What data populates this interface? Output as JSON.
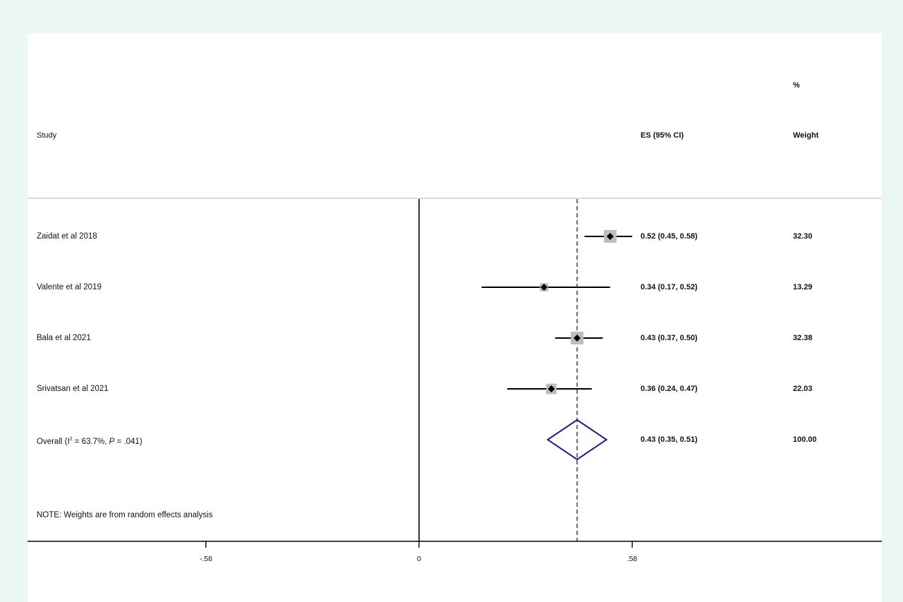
{
  "headers": {
    "study": "Study",
    "es": "ES (95% CI)",
    "weight_top": "%",
    "weight": "Weight"
  },
  "overall": {
    "label_prefix": "Overall  (I",
    "label_sup": "2",
    "label_mid": " = 63.7%, ",
    "label_p": "P",
    "label_end": " = .041)",
    "es_text": "0.43 (0.35, 0.51)",
    "weight_text": "100.00"
  },
  "note": "NOTE: Weights are from random effects analysis",
  "chart_data": {
    "type": "forest",
    "x_axis": {
      "ticks": [
        -0.58,
        0,
        0.58
      ],
      "tick_labels": [
        "-.58",
        "0",
        ".58"
      ],
      "range": [
        -1.064,
        1.256
      ]
    },
    "null_line": 0,
    "pooled_line": 0.43,
    "studies": [
      {
        "name": "Zaidat et al 2018",
        "es": 0.52,
        "lo": 0.45,
        "hi": 0.58,
        "weight": 32.3,
        "es_text": "0.52 (0.45, 0.58)",
        "weight_text": "32.30"
      },
      {
        "name": "Valente et al 2019",
        "es": 0.34,
        "lo": 0.17,
        "hi": 0.52,
        "weight": 13.29,
        "es_text": "0.34 (0.17, 0.52)",
        "weight_text": "13.29"
      },
      {
        "name": "Bala et al 2021",
        "es": 0.43,
        "lo": 0.37,
        "hi": 0.5,
        "weight": 32.38,
        "es_text": "0.43 (0.37, 0.50)",
        "weight_text": "32.38"
      },
      {
        "name": "Srivatsan et al 2021",
        "es": 0.36,
        "lo": 0.24,
        "hi": 0.47,
        "weight": 22.03,
        "es_text": "0.36 (0.24, 0.47)",
        "weight_text": "22.03"
      }
    ],
    "overall": {
      "es": 0.43,
      "lo": 0.35,
      "hi": 0.51,
      "weight": 100.0
    },
    "colors": {
      "ci_line": "#000000",
      "weight_box": "#b8bfbf",
      "point": "#000000",
      "diamond": "#1a237e",
      "pooled_line": "#8b2a7a",
      "axis": "#000000",
      "separator": "#c9cfd3"
    }
  }
}
